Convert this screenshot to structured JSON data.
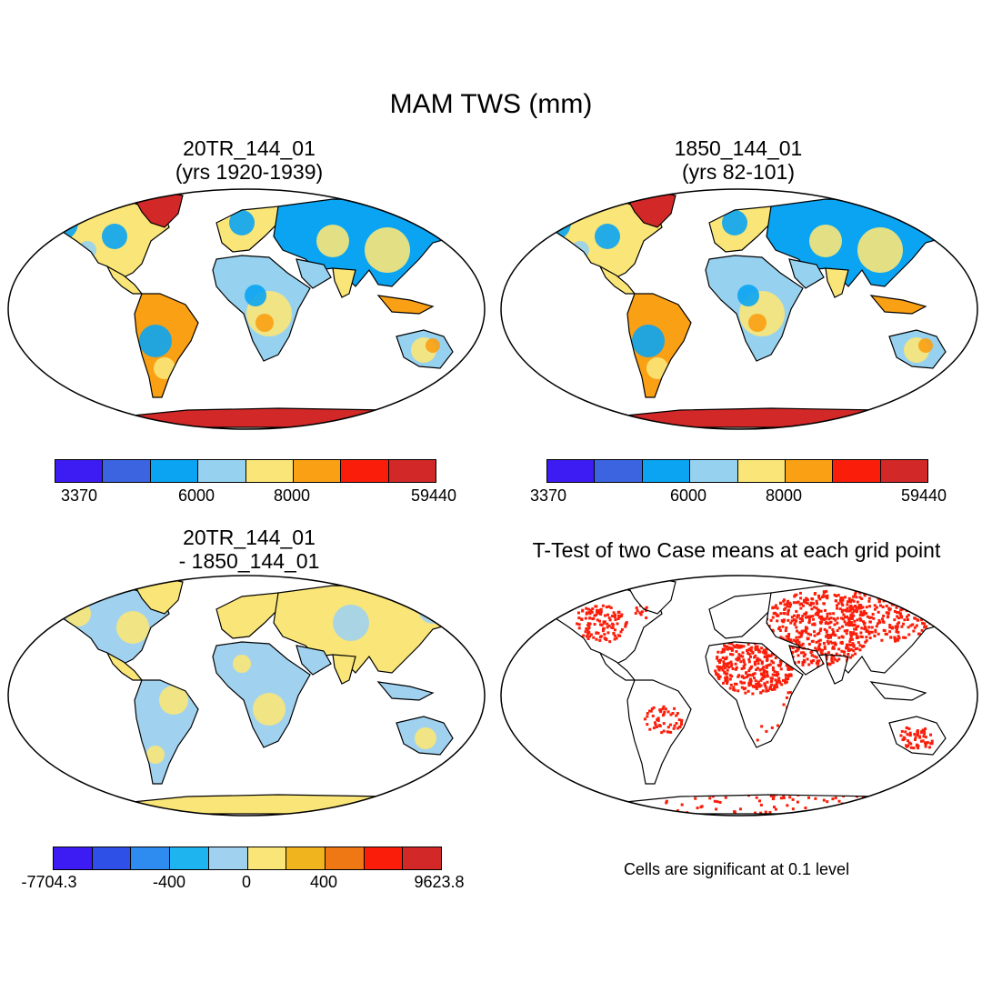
{
  "main_title": "MAM TWS (mm)",
  "panels": [
    {
      "title_line1": "20TR_144_01",
      "title_line2": "(yrs 1920-1939)"
    },
    {
      "title_line1": "1850_144_01",
      "title_line2": "(yrs 82-101)"
    },
    {
      "title_line1": "20TR_144_01",
      "title_line2": "- 1850_144_01"
    },
    {
      "title_line1": "T-Test of two Case means at each grid point",
      "title_line2": ""
    }
  ],
  "colorbar_abs": {
    "colors": [
      "#3c1cf2",
      "#3c64e0",
      "#0aa4f2",
      "#96d2f0",
      "#fae678",
      "#faa014",
      "#fa1e0a",
      "#d22828"
    ],
    "tick_labels": [
      "3370",
      "6000",
      "8000",
      "59440"
    ]
  },
  "colorbar_diff": {
    "colors": [
      "#3c1cf2",
      "#2e50e6",
      "#2e8cf0",
      "#1eb4f0",
      "#a0d2f0",
      "#fae678",
      "#f0b41e",
      "#f07814",
      "#fa1e0a",
      "#d22828"
    ],
    "tick_labels": [
      "-7704.3",
      "-400",
      "0",
      "400",
      "9623.8"
    ]
  },
  "note": "Cells are significant at 0.1 level",
  "map_colors": {
    "ocean": "#ffffff",
    "land_abs": "#fae678",
    "land_abs_blue": "#0aa4f2",
    "land_abs_light": "#96d2f0",
    "land_abs_orange": "#faa014",
    "ice": "#d22828",
    "land_diff": "#fae678",
    "land_diff_blue": "#a0d2f0",
    "signif": "#fa1e0a",
    "coast": "#000000"
  }
}
